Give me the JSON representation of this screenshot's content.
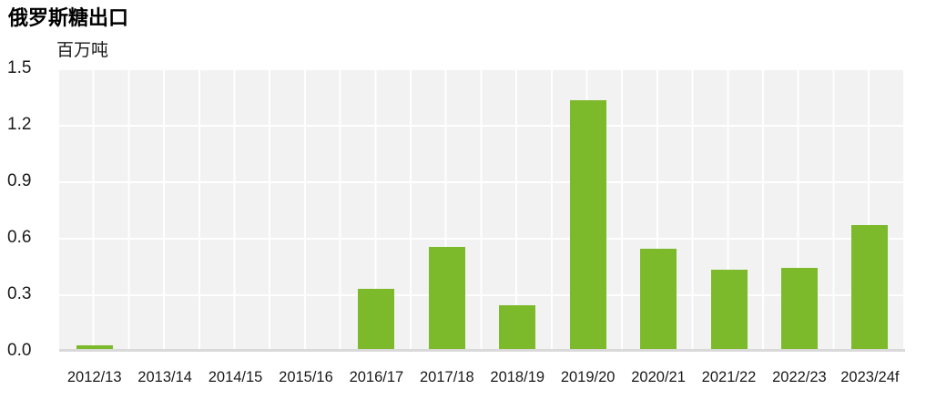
{
  "header": {
    "title": "俄罗斯糖出口",
    "unit_label": "百万吨"
  },
  "chart_data": {
    "type": "bar",
    "title": "俄罗斯糖出口",
    "ylabel": "百万吨",
    "xlabel": "",
    "categories": [
      "2012/13",
      "2013/14",
      "2014/15",
      "2015/16",
      "2016/17",
      "2017/18",
      "2018/19",
      "2019/20",
      "2020/21",
      "2021/22",
      "2022/23",
      "2023/24f"
    ],
    "values": [
      0.03,
      0,
      0,
      0.01,
      0.33,
      0.55,
      0.24,
      1.33,
      0.54,
      0.43,
      0.44,
      0.67
    ],
    "ylim": [
      0,
      1.5
    ],
    "ytick_labels": [
      "0.0",
      "0.3",
      "0.6",
      "0.9",
      "1.2",
      "1.5"
    ],
    "grid": true,
    "legend": "none",
    "colors": {
      "bar": "#7cba2b",
      "plot_bg": "#f2f2f2",
      "gridline": "#ffffff",
      "axis_line": "#d9d9d9",
      "text": "#1a1a1a"
    }
  }
}
